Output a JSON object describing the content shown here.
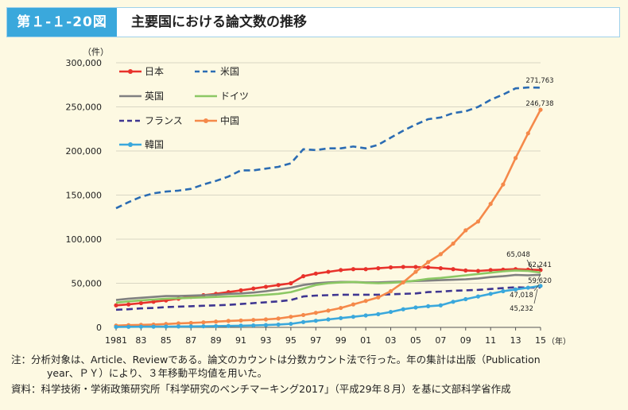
{
  "header": {
    "badge": "第１-１-20図",
    "title": "主要国における論文数の推移"
  },
  "chart_data": {
    "type": "line",
    "ylabel": "（件）",
    "xlabel": "（年）",
    "ylim": [
      0,
      300000
    ],
    "yticks": [
      "0",
      "50,000",
      "100,000",
      "150,000",
      "200,000",
      "250,000",
      "300,000"
    ],
    "x": [
      1981,
      1982,
      1983,
      1984,
      1985,
      1986,
      1987,
      1988,
      1989,
      1990,
      1991,
      1992,
      1993,
      1994,
      1995,
      1996,
      1997,
      1998,
      1999,
      2000,
      2001,
      2002,
      2003,
      2004,
      2005,
      2006,
      2007,
      2008,
      2009,
      2010,
      2011,
      2012,
      2013,
      2014,
      2015
    ],
    "xtick_labels": [
      "1981",
      "83",
      "85",
      "87",
      "89",
      "91",
      "93",
      "95",
      "97",
      "99",
      "01",
      "03",
      "05",
      "07",
      "09",
      "11",
      "13",
      "15"
    ],
    "legend_position": "top-left",
    "series": [
      {
        "name": "日本",
        "color": "#e8322b",
        "style": "solid",
        "marker": true,
        "values": [
          25000,
          26000,
          27500,
          29000,
          30500,
          32500,
          34500,
          36500,
          38000,
          40000,
          42000,
          44000,
          46000,
          48000,
          50000,
          58000,
          61000,
          63000,
          65000,
          66000,
          66000,
          67000,
          68000,
          68500,
          68500,
          68000,
          67000,
          66000,
          64500,
          64000,
          65000,
          65500,
          66000,
          65500,
          65048
        ]
      },
      {
        "name": "米国",
        "color": "#2b6cb3",
        "style": "dashed",
        "marker": false,
        "values": [
          135000,
          142000,
          148000,
          152000,
          154000,
          155000,
          157000,
          162000,
          166000,
          171000,
          178000,
          178000,
          180000,
          182000,
          186000,
          202000,
          201000,
          203000,
          203000,
          205000,
          203000,
          207000,
          215000,
          223000,
          230000,
          236000,
          238000,
          243000,
          245000,
          250000,
          258000,
          264000,
          271000,
          272000,
          271763
        ]
      },
      {
        "name": "英国",
        "color": "#808080",
        "style": "solid",
        "marker": false,
        "values": [
          31000,
          32500,
          33500,
          34500,
          35500,
          35500,
          36000,
          36500,
          37000,
          38000,
          38500,
          39500,
          41000,
          43000,
          45000,
          48000,
          50000,
          51000,
          51500,
          51500,
          51000,
          51000,
          51500,
          52000,
          52500,
          53000,
          53500,
          54000,
          54500,
          55500,
          57000,
          58000,
          59500,
          59000,
          59620
        ]
      },
      {
        "name": "ドイツ",
        "color": "#8cc864",
        "style": "solid",
        "marker": false,
        "values": [
          28000,
          29500,
          30500,
          31500,
          32500,
          33000,
          33500,
          34000,
          34500,
          35000,
          35500,
          36000,
          37000,
          38000,
          40000,
          44000,
          48000,
          50000,
          51000,
          51500,
          50500,
          50000,
          50500,
          51500,
          53000,
          55000,
          56000,
          57500,
          59000,
          60500,
          62000,
          63500,
          64500,
          64000,
          62241
        ]
      },
      {
        "name": "フランス",
        "color": "#3f3691",
        "style": "dashed",
        "marker": false,
        "values": [
          20000,
          20500,
          21500,
          22000,
          23000,
          23500,
          24000,
          24500,
          25000,
          25500,
          26500,
          27500,
          28500,
          29500,
          31000,
          35000,
          36000,
          36500,
          37000,
          37000,
          37000,
          37000,
          37500,
          38000,
          38500,
          40000,
          40500,
          41500,
          42000,
          42500,
          43500,
          44500,
          45500,
          45000,
          45232
        ]
      },
      {
        "name": "中国",
        "color": "#f5894a",
        "style": "solid",
        "marker": true,
        "values": [
          2000,
          2500,
          2800,
          3200,
          3800,
          4500,
          5000,
          5700,
          6500,
          7300,
          7800,
          8400,
          9000,
          10000,
          12000,
          14000,
          16500,
          19000,
          22000,
          26000,
          30000,
          34000,
          41000,
          51000,
          63000,
          74000,
          83000,
          95000,
          110000,
          120000,
          140000,
          162000,
          192000,
          220000,
          246738
        ]
      },
      {
        "name": "韓国",
        "color": "#3aa8dc",
        "style": "solid",
        "marker": true,
        "values": [
          500,
          600,
          700,
          800,
          900,
          1000,
          1100,
          1200,
          1400,
          1600,
          1900,
          2200,
          2600,
          3200,
          4000,
          6000,
          7500,
          9000,
          10500,
          12000,
          13500,
          15000,
          17500,
          20500,
          22500,
          24000,
          25000,
          29000,
          32000,
          35000,
          38000,
          41000,
          43000,
          45000,
          47018
        ]
      }
    ],
    "annotations": [
      {
        "text": "271,763",
        "series": "米国"
      },
      {
        "text": "246,738",
        "series": "中国"
      },
      {
        "text": "65,048",
        "series": "日本"
      },
      {
        "text": "62,241",
        "series": "ドイツ"
      },
      {
        "text": "59,620",
        "series": "英国"
      },
      {
        "text": "47,018",
        "series": "韓国"
      },
      {
        "text": "45,232",
        "series": "フランス"
      }
    ]
  },
  "notes": {
    "line1": "注：分析対象は、Article、Reviewである。論文のカウントは分数カウント法で行った。年の集計は出版（Publication",
    "line2": "year、ＰＹ）により、３年移動平均値を用いた。",
    "line3": "資料：科学技術・学術政策研究所「科学研究のベンチマーキング2017」（平成29年８月）を基に文部科学省作成"
  }
}
